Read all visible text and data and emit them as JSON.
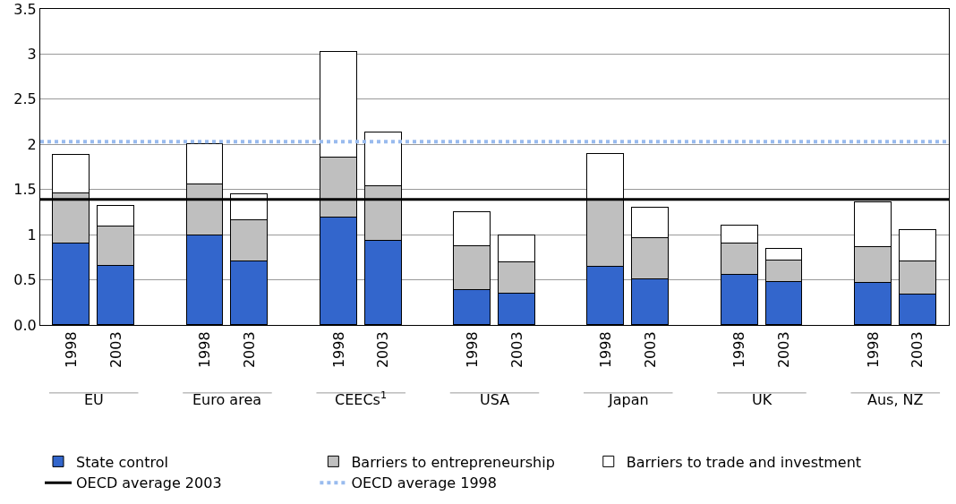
{
  "chart_data": {
    "type": "bar",
    "stacked": true,
    "categories": [
      "1998",
      "2003",
      "1998",
      "2003",
      "1998",
      "2003",
      "1998",
      "2003",
      "1998",
      "2003",
      "1998",
      "2003",
      "1998",
      "2003"
    ],
    "series": [
      {
        "name": "State control",
        "color": "#3366cc",
        "values": [
          0.9,
          0.65,
          0.99,
          0.7,
          1.19,
          0.93,
          0.39,
          0.35,
          0.64,
          0.51,
          0.56,
          0.48,
          0.47,
          0.34
        ]
      },
      {
        "name": "Barriers to entrepreneurship",
        "color": "#bfbfbf",
        "values": [
          0.56,
          0.44,
          0.57,
          0.46,
          0.66,
          0.61,
          0.48,
          0.34,
          0.75,
          0.45,
          0.34,
          0.23,
          0.39,
          0.36
        ]
      },
      {
        "name": "Barriers to trade and investment",
        "color": "#ffffff",
        "values": [
          0.42,
          0.23,
          0.44,
          0.29,
          1.17,
          0.59,
          0.38,
          0.3,
          0.5,
          0.34,
          0.2,
          0.13,
          0.5,
          0.35
        ]
      }
    ],
    "annotations": [
      "EU",
      "Euro area",
      "CEECs$^{1}$",
      "USA",
      "Japan",
      "UK",
      "Aus, NZ"
    ],
    "ref_lines": [
      {
        "axis": "y",
        "value": 1.39,
        "label": "OECD average 2003",
        "color": "#000000",
        "line_style": "solid"
      },
      {
        "axis": "y",
        "value": 2.03,
        "label": "OECD average 1998",
        "color": "#99bbee",
        "line_style": "dotted"
      }
    ],
    "ylim": [
      0,
      3.5
    ],
    "yticks": [
      {
        "value": 0,
        "label": "0.0"
      },
      0.5,
      1,
      1.5,
      2,
      2.5,
      3,
      3.5
    ],
    "grid": "y",
    "legend": "bottom"
  }
}
